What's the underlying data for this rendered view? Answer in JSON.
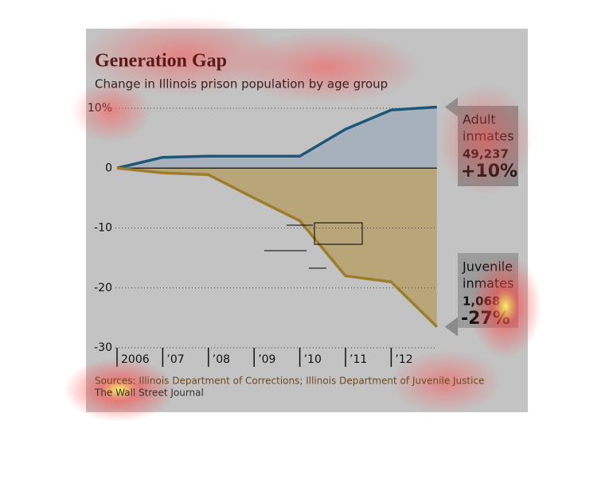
{
  "chart_data": {
    "type": "area-line",
    "title": "Generation Gap",
    "subtitle": "Change in Illinois prison population by age group",
    "categories": [
      "2006",
      "’07",
      "’08",
      "’09",
      "’10",
      "’11",
      "’12",
      null
    ],
    "series": [
      {
        "color": "#1d5878",
        "fill": "#a7b1bc",
        "values": [
          0,
          1.8,
          2.0,
          2.0,
          2.0,
          6.5,
          9.7,
          10.2
        ],
        "label_lines": [
          "Adult",
          "inmates"
        ],
        "count": "49,237",
        "change": "+10%"
      },
      {
        "color": "#9c7d2e",
        "fill": "#b9a678",
        "values": [
          0,
          -0.8,
          -1.1,
          -5,
          -8.8,
          -18,
          -19,
          -26.5
        ],
        "label_lines": [
          "Juvenile",
          "inmates"
        ],
        "count": "1,068",
        "change": "-27%"
      }
    ],
    "ylim": [
      -30,
      10
    ],
    "yticks": [
      {
        "value": 10,
        "label": "10%"
      },
      0,
      -10,
      -20,
      -30
    ],
    "grid": true,
    "sources": [
      "Sources: Illinois Department of Corrections; Illinois Department of Juvenile Justice",
      "The Wall Street Journal"
    ]
  }
}
